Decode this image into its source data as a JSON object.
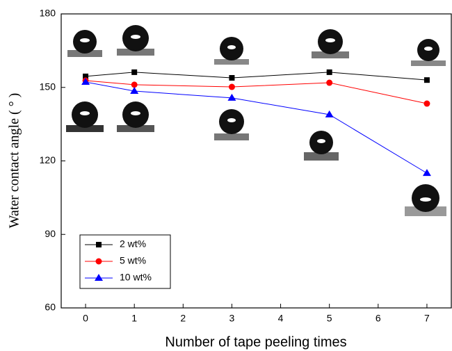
{
  "chart_data": {
    "type": "line",
    "x_label": "Number of tape peeling times",
    "y_label": "Water contact angle ( ° )",
    "x": [
      0,
      1,
      3,
      5,
      7
    ],
    "series": [
      {
        "name": "2 wt%",
        "color": "#000000",
        "marker": "square",
        "values": [
          154.5,
          156.2,
          153.9,
          156.2,
          153.0
        ]
      },
      {
        "name": "5 wt%",
        "color": "#ff0000",
        "marker": "circle",
        "values": [
          152.8,
          151.1,
          150.2,
          151.9,
          143.4
        ]
      },
      {
        "name": "10 wt%",
        "color": "#0000ff",
        "marker": "triangle",
        "values": [
          152.2,
          148.5,
          145.7,
          138.9,
          115.0
        ]
      }
    ],
    "xlim": [
      -0.5,
      7.5
    ],
    "xticks": [
      0,
      1,
      2,
      3,
      4,
      5,
      6,
      7
    ],
    "ylim": [
      60,
      180
    ],
    "yticks": [
      60,
      90,
      120,
      150,
      180
    ],
    "legend": "lower-left"
  }
}
